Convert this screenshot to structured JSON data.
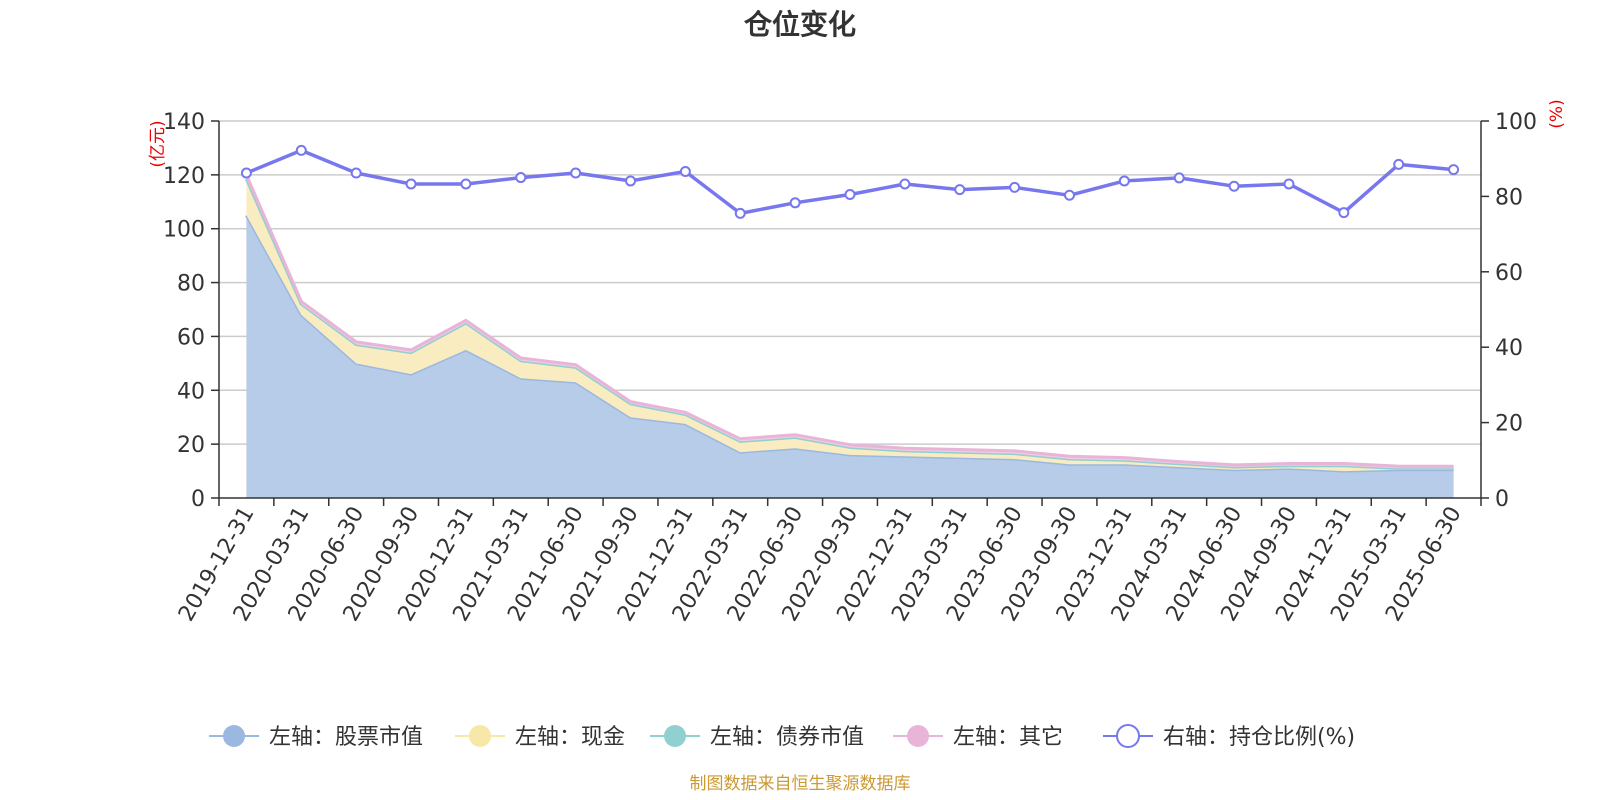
{
  "chart_data": {
    "type": "area",
    "title": "仓位变化",
    "left_axis_unit": "(亿元)",
    "right_axis_unit": "(%)",
    "x": [
      "2019-12-31",
      "2020-03-31",
      "2020-06-30",
      "2020-09-30",
      "2020-12-31",
      "2021-03-31",
      "2021-06-30",
      "2021-09-30",
      "2021-12-31",
      "2022-03-31",
      "2022-06-30",
      "2022-09-30",
      "2022-12-31",
      "2023-03-31",
      "2023-06-30",
      "2023-09-30",
      "2023-12-31",
      "2024-03-31",
      "2024-06-30",
      "2024-09-30",
      "2024-12-31",
      "2025-03-31",
      "2025-06-30"
    ],
    "ylim_left": [
      0,
      140
    ],
    "yticks_left": [
      0,
      20,
      40,
      60,
      80,
      100,
      120,
      140
    ],
    "ylim_right": [
      0,
      100
    ],
    "yticks_right": [
      0,
      20,
      40,
      60,
      80,
      100
    ],
    "grid": true,
    "legend_position": "bottom",
    "series": [
      {
        "name": "左轴：股票市值",
        "axis": "left",
        "stack": true,
        "color": "#9ab8e0",
        "fill": "#b7cce9",
        "values": [
          105,
          68,
          50,
          46,
          55,
          44.5,
          43,
          30,
          27.5,
          17,
          18.5,
          16,
          15.5,
          15,
          14.5,
          12.5,
          12.5,
          11.5,
          10.5,
          11,
          10,
          10.5,
          10.5
        ]
      },
      {
        "name": "左轴：现金",
        "axis": "left",
        "stack": true,
        "color": "#f8e8a8",
        "fill": "#f8ecc0",
        "values": [
          13.5,
          4,
          7,
          8,
          10,
          6.5,
          5.5,
          5,
          3.5,
          4,
          4,
          2.8,
          2,
          2,
          2,
          2,
          1.5,
          1.2,
          1,
          1,
          2,
          0.5,
          0.5
        ]
      },
      {
        "name": "左轴：债券市值",
        "axis": "left",
        "stack": true,
        "color": "#90d0d0",
        "fill": "#bfe6e6",
        "values": [
          0,
          0,
          0,
          0,
          0,
          0,
          0,
          0,
          0,
          0,
          0,
          0,
          0,
          0,
          0,
          0,
          0,
          0,
          0,
          0,
          0,
          0,
          0
        ]
      },
      {
        "name": "左轴：其它",
        "axis": "left",
        "stack": true,
        "color": "#e8b4d8",
        "fill": "#f0cce4",
        "values": [
          1.5,
          1,
          1,
          1,
          1,
          1,
          1,
          0.8,
          0.8,
          1,
          1,
          1,
          1,
          1,
          1,
          1,
          1,
          0.8,
          0.8,
          0.8,
          0.8,
          0.8,
          0.8
        ]
      },
      {
        "name": "右轴：持仓比例(%)",
        "axis": "right",
        "type": "line",
        "color": "#7777ee",
        "values": [
          86.2,
          92.2,
          86.2,
          83.3,
          83.3,
          85.0,
          86.2,
          84.1,
          86.6,
          75.5,
          78.3,
          80.5,
          83.3,
          81.8,
          82.4,
          80.3,
          84.1,
          84.9,
          82.7,
          83.3,
          75.7,
          88.5,
          87.1
        ]
      }
    ],
    "source": "制图数据来自恒生聚源数据库"
  }
}
